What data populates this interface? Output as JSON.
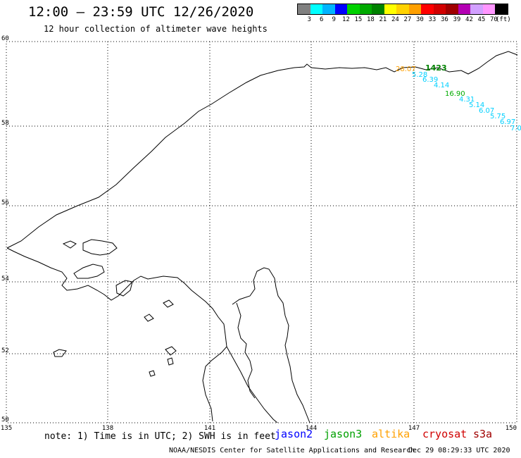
{
  "header": {
    "title": "12:00 – 23:59 UTC 12/26/2020",
    "subtitle": "12 hour collection of altimeter wave heights"
  },
  "legend": {
    "unit": "(ft)",
    "colors": [
      "#808080",
      "#00ffff",
      "#00b4ff",
      "#0000ff",
      "#00d200",
      "#00aa00",
      "#008200",
      "#ffff00",
      "#ffd200",
      "#ffa000",
      "#ff0000",
      "#d20000",
      "#a00000",
      "#b400b4",
      "#d2a0ff",
      "#ff96ff",
      "#000000"
    ],
    "labels": [
      "3",
      "6",
      "9",
      "12",
      "15",
      "18",
      "21",
      "24",
      "27",
      "30",
      "33",
      "36",
      "39",
      "42",
      "45",
      "70"
    ]
  },
  "map": {
    "lat_labels": [
      "60",
      "58",
      "56",
      "54",
      "52",
      "50"
    ],
    "lon_labels": [
      "135",
      "138",
      "141",
      "144",
      "147",
      "150"
    ],
    "observations": [
      {
        "text": "28.07",
        "color": "#ffa000"
      },
      {
        "text": "1423",
        "color": "#008200"
      },
      {
        "text": "5.28",
        "color": "#00d0ff"
      },
      {
        "text": "6.39",
        "color": "#00d0ff"
      },
      {
        "text": "4.14",
        "color": "#00d0ff"
      },
      {
        "text": "16.90",
        "color": "#00aa00"
      },
      {
        "text": "4.31",
        "color": "#00d0ff"
      },
      {
        "text": "5.14",
        "color": "#00d0ff"
      },
      {
        "text": "6.07",
        "color": "#00d0ff"
      },
      {
        "text": "5.75",
        "color": "#00d0ff"
      },
      {
        "text": "6.97",
        "color": "#00d0ff"
      },
      {
        "text": "7.0",
        "color": "#00d0ff"
      }
    ]
  },
  "footer": {
    "note": "note: 1) Time is in UTC; 2) SWH is in feet",
    "satellites": [
      {
        "name": "jason2",
        "color": "#0000ff"
      },
      {
        "name": "jason3",
        "color": "#00a000"
      },
      {
        "name": "altika",
        "color": "#ffa000"
      },
      {
        "name": "cryosat",
        "color": "#d00000"
      },
      {
        "name": "s3a",
        "color": "#a00000"
      }
    ],
    "credit": "NOAA/NESDIS Center for Satellite Applications and Research",
    "timestamp": "Dec 29 08:29:33 UTC 2020"
  }
}
